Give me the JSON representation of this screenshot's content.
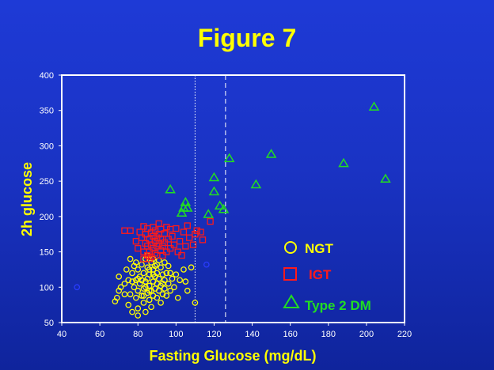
{
  "slide": {
    "title": "Figure 7"
  },
  "chart_data": {
    "type": "scatter",
    "title": "Figure 7",
    "xlabel": "Fasting Glucose (mg/dL)",
    "ylabel": "2h glucose",
    "xlim": [
      40,
      220
    ],
    "ylim": [
      50,
      400
    ],
    "xticks": [
      40,
      60,
      80,
      100,
      120,
      140,
      160,
      180,
      200,
      220
    ],
    "yticks": [
      50,
      100,
      150,
      200,
      250,
      300,
      350,
      400
    ],
    "grid": false,
    "reference_lines": [
      {
        "x": 110,
        "style": "dotted",
        "color": "#ffffff"
      },
      {
        "x": 126,
        "style": "dashed",
        "color": "#ffffff"
      }
    ],
    "legend": {
      "position": "right",
      "entries": [
        "NGT",
        "IGT",
        "Type 2 DM"
      ]
    },
    "series": [
      {
        "name": "NGT",
        "marker": "circle",
        "color": "#ffff00",
        "points": [
          [
            68,
            80
          ],
          [
            69,
            85
          ],
          [
            70,
            115
          ],
          [
            70,
            95
          ],
          [
            71,
            100
          ],
          [
            73,
            105
          ],
          [
            74,
            125
          ],
          [
            75,
            75
          ],
          [
            75,
            110
          ],
          [
            76,
            90
          ],
          [
            76,
            140
          ],
          [
            77,
            65
          ],
          [
            77,
            120
          ],
          [
            78,
            100
          ],
          [
            78,
            130
          ],
          [
            79,
            85
          ],
          [
            79,
            110
          ],
          [
            80,
            70
          ],
          [
            80,
            60
          ],
          [
            80,
            95
          ],
          [
            80,
            125
          ],
          [
            81,
            105
          ],
          [
            81,
            115
          ],
          [
            82,
            88
          ],
          [
            82,
            132
          ],
          [
            83,
            78
          ],
          [
            83,
            98
          ],
          [
            83,
            120
          ],
          [
            84,
            65
          ],
          [
            84,
            108
          ],
          [
            84,
            140
          ],
          [
            85,
            92
          ],
          [
            85,
            112
          ],
          [
            85,
            128
          ],
          [
            86,
            82
          ],
          [
            86,
            102
          ],
          [
            86,
            118
          ],
          [
            87,
            72
          ],
          [
            87,
            95
          ],
          [
            87,
            135
          ],
          [
            88,
            88
          ],
          [
            88,
            108
          ],
          [
            88,
            125
          ],
          [
            89,
            98
          ],
          [
            89,
            115
          ],
          [
            89,
            130
          ],
          [
            90,
            85
          ],
          [
            90,
            105
          ],
          [
            90,
            120
          ],
          [
            91,
            95
          ],
          [
            91,
            112
          ],
          [
            92,
            78
          ],
          [
            92,
            102
          ],
          [
            92,
            128
          ],
          [
            93,
            90
          ],
          [
            93,
            118
          ],
          [
            94,
            98
          ],
          [
            94,
            110
          ],
          [
            95,
            88
          ],
          [
            95,
            120
          ],
          [
            96,
            105
          ],
          [
            96,
            130
          ],
          [
            97,
            95
          ],
          [
            98,
            112
          ],
          [
            99,
            100
          ],
          [
            100,
            118
          ],
          [
            102,
            110
          ],
          [
            104,
            125
          ],
          [
            105,
            108
          ],
          [
            106,
            95
          ],
          [
            108,
            128
          ],
          [
            101,
            85
          ],
          [
            85,
            145
          ],
          [
            88,
            140
          ],
          [
            91,
            138
          ],
          [
            79,
            135
          ],
          [
            82,
            110
          ],
          [
            86,
            125
          ],
          [
            84,
            100
          ],
          [
            88,
            118
          ],
          [
            93,
            105
          ],
          [
            97,
            120
          ],
          [
            77,
            108
          ],
          [
            73,
            90
          ],
          [
            80,
            112
          ],
          [
            83,
            88
          ],
          [
            90,
            132
          ],
          [
            86,
            95
          ],
          [
            94,
            135
          ],
          [
            110,
            78
          ]
        ]
      },
      {
        "name": "IGT",
        "marker": "square",
        "color": "#ff1a1a",
        "points": [
          [
            73,
            180
          ],
          [
            76,
            180
          ],
          [
            79,
            165
          ],
          [
            80,
            155
          ],
          [
            81,
            178
          ],
          [
            82,
            170
          ],
          [
            83,
            186
          ],
          [
            83,
            150
          ],
          [
            84,
            162
          ],
          [
            84,
            175
          ],
          [
            85,
            145
          ],
          [
            85,
            158
          ],
          [
            85,
            183
          ],
          [
            86,
            168
          ],
          [
            86,
            150
          ],
          [
            87,
            177
          ],
          [
            87,
            160
          ],
          [
            87,
            143
          ],
          [
            88,
            185
          ],
          [
            88,
            172
          ],
          [
            88,
            155
          ],
          [
            89,
            165
          ],
          [
            89,
            148
          ],
          [
            89,
            180
          ],
          [
            90,
            170
          ],
          [
            90,
            158
          ],
          [
            90,
            145
          ],
          [
            91,
            175
          ],
          [
            91,
            162
          ],
          [
            91,
            190
          ],
          [
            92,
            152
          ],
          [
            92,
            168
          ],
          [
            92,
            182
          ],
          [
            93,
            158
          ],
          [
            93,
            145
          ],
          [
            94,
            176
          ],
          [
            94,
            163
          ],
          [
            95,
            150
          ],
          [
            95,
            185
          ],
          [
            96,
            168
          ],
          [
            97,
            155
          ],
          [
            98,
            172
          ],
          [
            99,
            160
          ],
          [
            100,
            183
          ],
          [
            101,
            150
          ],
          [
            102,
            165
          ],
          [
            104,
            178
          ],
          [
            105,
            158
          ],
          [
            107,
            170
          ],
          [
            109,
            160
          ],
          [
            110,
            175
          ],
          [
            111,
            180
          ],
          [
            113,
            178
          ],
          [
            114,
            167
          ],
          [
            118,
            193
          ],
          [
            106,
            187
          ],
          [
            103,
            145
          ],
          [
            97,
            182
          ],
          [
            86,
            140
          ],
          [
            83,
            140
          ]
        ]
      },
      {
        "name": "Type 2 DM",
        "marker": "triangle",
        "color": "#22dd22",
        "points": [
          [
            97,
            238
          ],
          [
            103,
            205
          ],
          [
            104,
            212
          ],
          [
            105,
            220
          ],
          [
            106,
            212
          ],
          [
            117,
            203
          ],
          [
            120,
            235
          ],
          [
            120,
            255
          ],
          [
            123,
            215
          ],
          [
            125,
            210
          ],
          [
            128,
            282
          ],
          [
            142,
            245
          ],
          [
            150,
            288
          ],
          [
            188,
            275
          ],
          [
            204,
            355
          ],
          [
            210,
            253
          ]
        ]
      },
      {
        "name": "",
        "marker": "circle",
        "color": "#2a3cff",
        "points": [
          [
            48,
            100
          ],
          [
            116,
            132
          ]
        ]
      }
    ]
  }
}
